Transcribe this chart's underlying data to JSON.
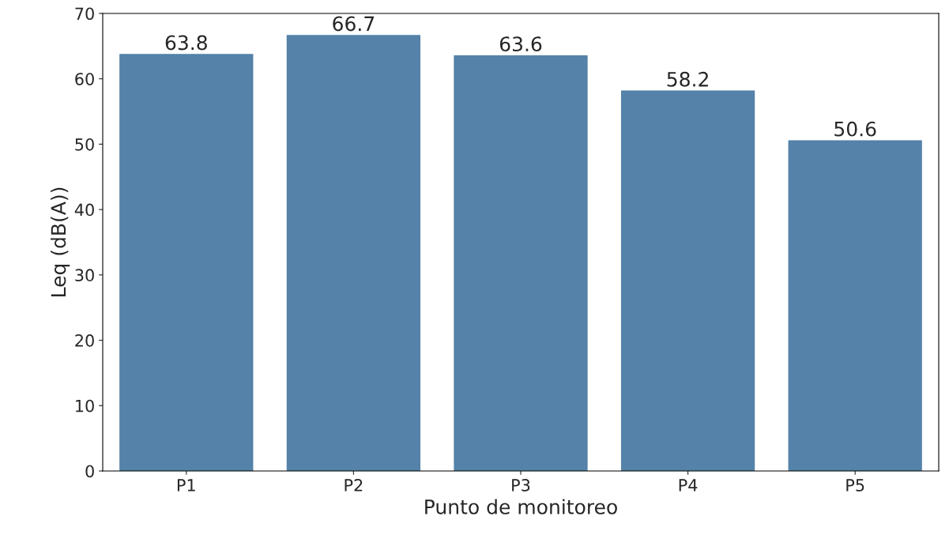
{
  "chart_data": {
    "type": "bar",
    "xlabel": "Punto de monitoreo",
    "ylabel": "Leq (dB(A))",
    "categories": [
      "P1",
      "P2",
      "P3",
      "P4",
      "P5"
    ],
    "values": [
      63.8,
      66.7,
      63.6,
      58.2,
      50.6
    ],
    "color": "#5482a8",
    "ylim": [
      0,
      70
    ],
    "yticks": [
      0,
      10,
      20,
      30,
      40,
      50,
      60,
      70
    ],
    "data_labels": true,
    "grid": false,
    "legend": false
  }
}
